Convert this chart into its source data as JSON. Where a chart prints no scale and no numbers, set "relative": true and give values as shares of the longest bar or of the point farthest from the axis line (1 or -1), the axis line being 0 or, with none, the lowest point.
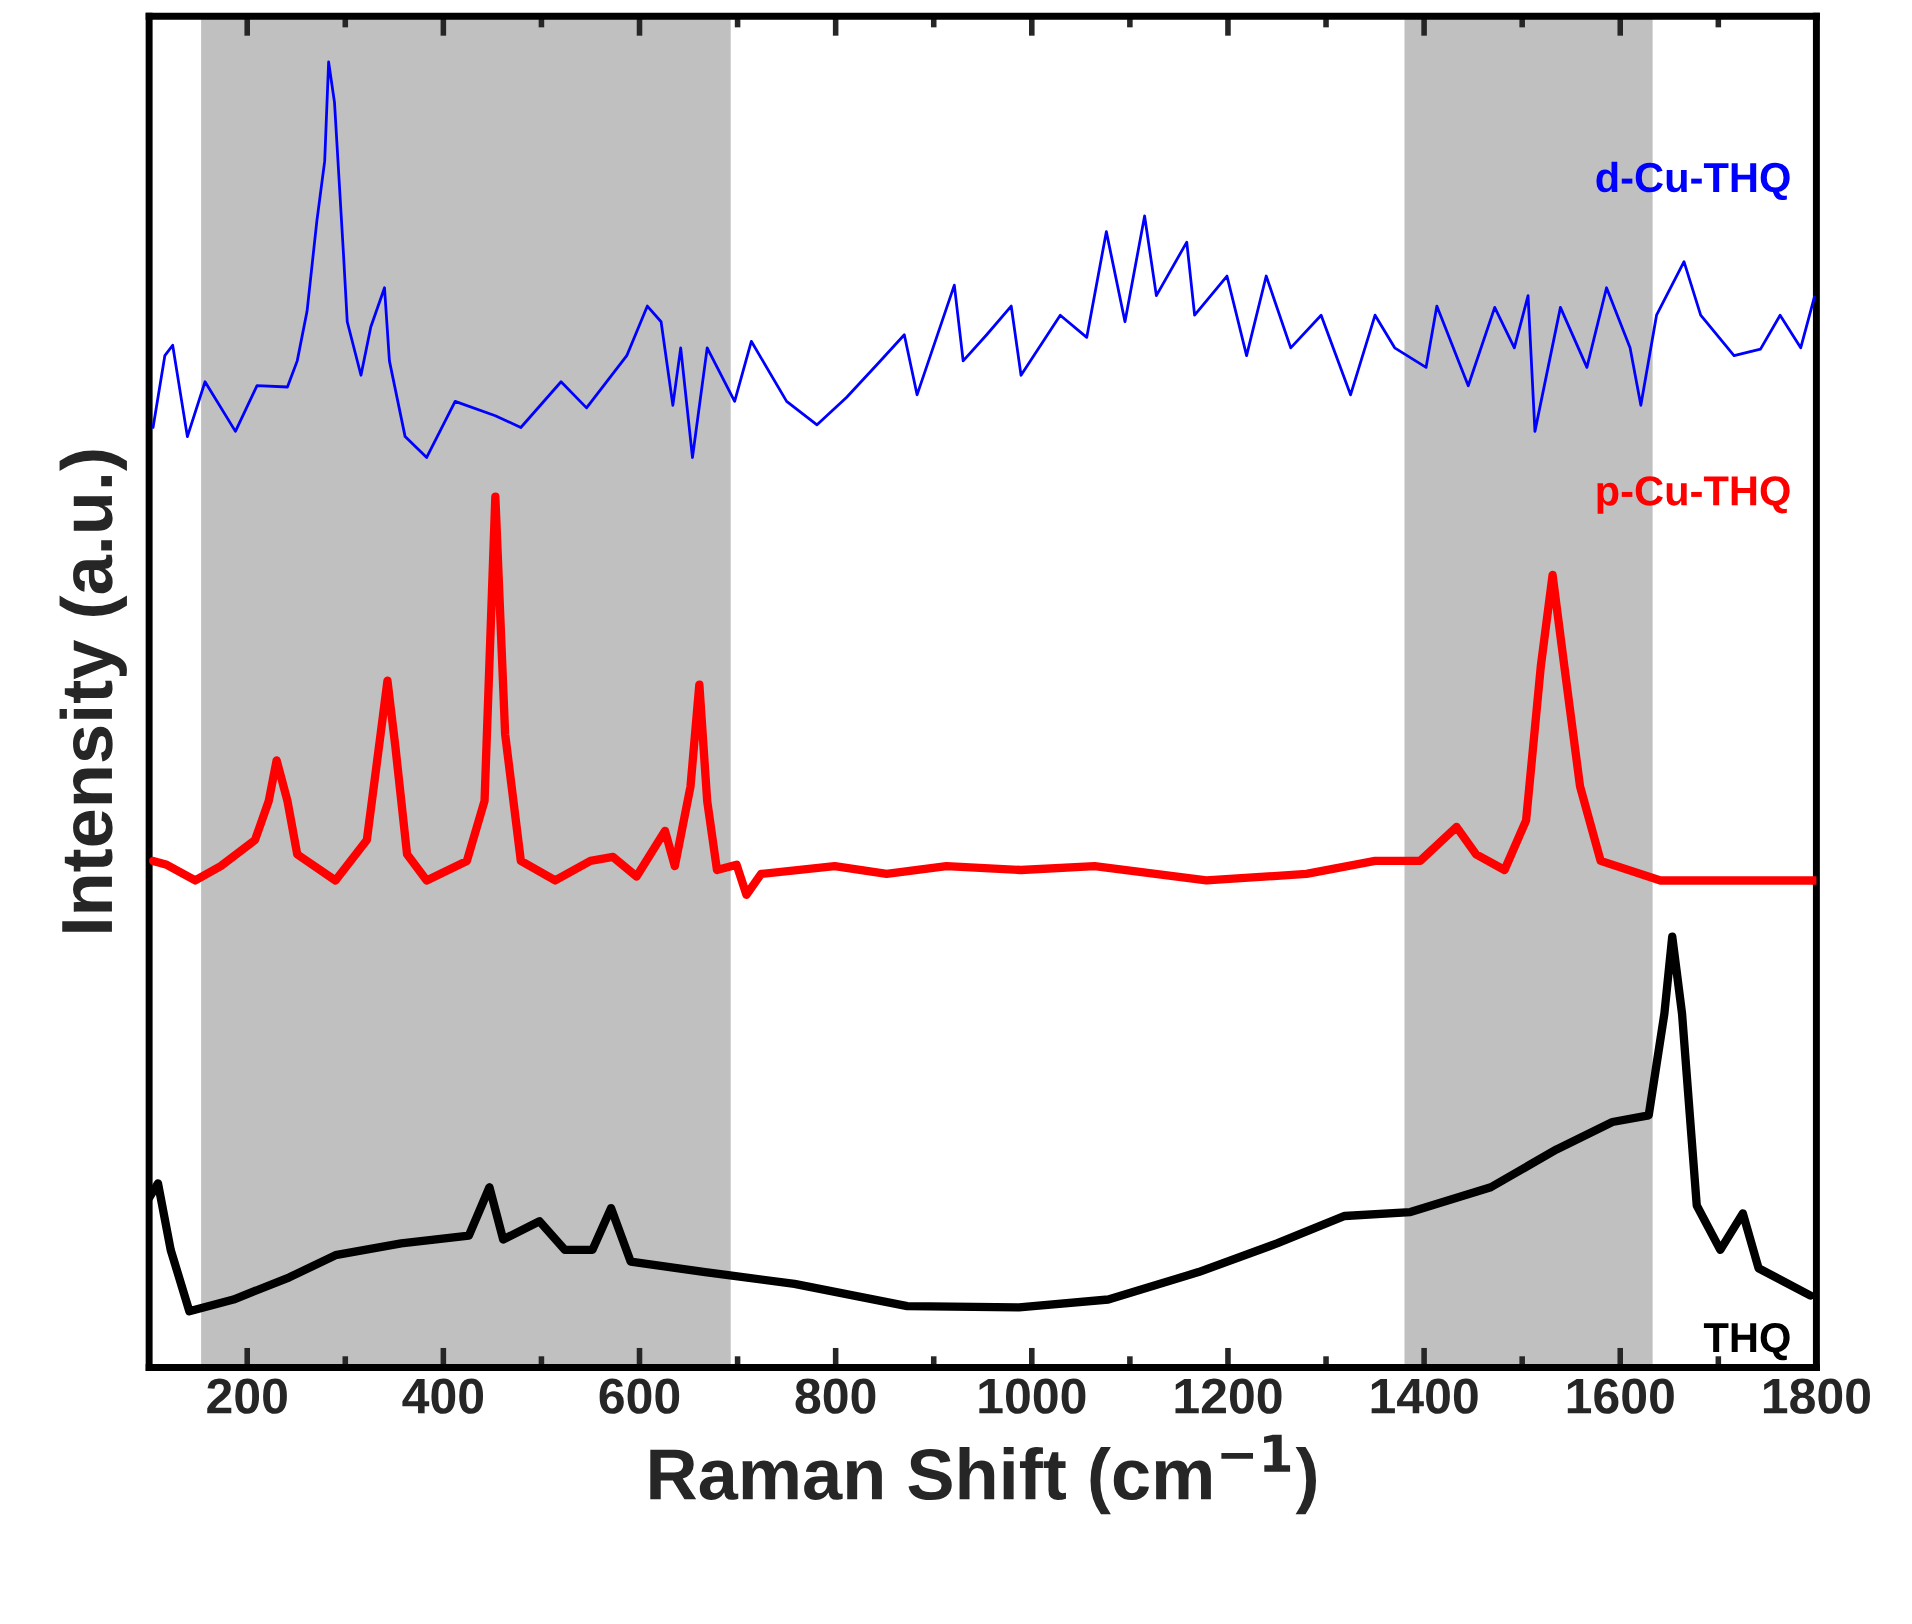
{
  "chart_data": {
    "type": "line",
    "xlabel": "Raman Shift (cm$^{−1}$)",
    "ylabel": "Intensity (a.u.)",
    "relative": true,
    "legend": false,
    "grid": false,
    "xlim": [
      100,
      1800
    ],
    "xticks": [
      {
        "value": 100,
        "label": null
      },
      200,
      {
        "value": 300,
        "label": null
      },
      400,
      {
        "value": 500,
        "label": null
      },
      600,
      {
        "value": 700,
        "label": null
      },
      800,
      {
        "value": 900,
        "label": null
      },
      1000,
      {
        "value": 1100,
        "label": null
      },
      1200,
      {
        "value": 1300,
        "label": null
      },
      1400,
      {
        "value": 1500,
        "label": null
      },
      1600,
      {
        "value": 1700,
        "label": null
      },
      1800
    ],
    "tick_labels": "x",
    "bands": [
      {
        "axis": "x",
        "from": 153,
        "to": 693,
        "label": null,
        "color": "#c0c0c0"
      },
      {
        "axis": "x",
        "from": 1380,
        "to": 1633,
        "label": null,
        "color": "#c0c0c0"
      }
    ],
    "series": [
      {
        "name": "d-Cu-THQ",
        "color": "#0000ff",
        "x": [
          104,
          116,
          124,
          139,
          157,
          188,
          210,
          241,
          251,
          261,
          271,
          279,
          283,
          289,
          298,
          302,
          316,
          326,
          340,
          345,
          361,
          383,
          412,
          453,
          479,
          520,
          546,
          587,
          608,
          622,
          634,
          642,
          654,
          669,
          697,
          714,
          750,
          781,
          811,
          842,
          870,
          883,
          921,
          930,
          954,
          979,
          989,
          1029,
          1056,
          1076,
          1095,
          1115,
          1127,
          1158,
          1166,
          1199,
          1219,
          1239,
          1264,
          1295,
          1325,
          1350,
          1370,
          1402,
          1413,
          1445,
          1472,
          1492,
          1506,
          1513,
          1539,
          1566,
          1586,
          1610,
          1621,
          1637,
          1665,
          1682,
          1716,
          1743,
          1763,
          1784,
          1798
        ],
        "values": [
          0.72,
          0.775,
          0.783,
          0.713,
          0.755,
          0.717,
          0.752,
          0.751,
          0.771,
          0.809,
          0.878,
          0.924,
          1.0,
          0.969,
          0.855,
          0.801,
          0.76,
          0.797,
          0.827,
          0.771,
          0.713,
          0.697,
          0.74,
          0.729,
          0.72,
          0.755,
          0.735,
          0.775,
          0.813,
          0.801,
          0.737,
          0.781,
          0.697,
          0.781,
          0.74,
          0.786,
          0.74,
          0.722,
          0.743,
          0.768,
          0.791,
          0.745,
          0.829,
          0.771,
          0.791,
          0.813,
          0.76,
          0.806,
          0.789,
          0.87,
          0.801,
          0.882,
          0.821,
          0.862,
          0.806,
          0.836,
          0.775,
          0.836,
          0.781,
          0.806,
          0.745,
          0.806,
          0.781,
          0.766,
          0.813,
          0.752,
          0.812,
          0.781,
          0.821,
          0.717,
          0.812,
          0.766,
          0.827,
          0.781,
          0.737,
          0.806,
          0.847,
          0.806,
          0.775,
          0.78,
          0.806,
          0.781,
          0.82
        ]
      },
      {
        "name": "p-Cu-THQ",
        "color": "#ff0000",
        "x": [
          104,
          118,
          147,
          173,
          208,
          222,
          230,
          241,
          251,
          290,
          322,
          336,
          343,
          351,
          363,
          383,
          424,
          442,
          453,
          463,
          479,
          514,
          550,
          573,
          597,
          626,
          636,
          652,
          661,
          669,
          679,
          699,
          709,
          724,
          799,
          852,
          913,
          989,
          1064,
          1178,
          1280,
          1350,
          1396,
          1433,
          1453,
          1482,
          1504,
          1519,
          1531,
          1543,
          1559,
          1580,
          1641,
          1708,
          1800
        ],
        "values": [
          0.388,
          0.385,
          0.373,
          0.384,
          0.404,
          0.434,
          0.465,
          0.434,
          0.393,
          0.373,
          0.404,
          0.485,
          0.526,
          0.476,
          0.393,
          0.373,
          0.388,
          0.434,
          0.667,
          0.485,
          0.388,
          0.373,
          0.388,
          0.391,
          0.376,
          0.411,
          0.384,
          0.445,
          0.523,
          0.434,
          0.381,
          0.385,
          0.362,
          0.378,
          0.384,
          0.378,
          0.384,
          0.381,
          0.384,
          0.373,
          0.378,
          0.388,
          0.388,
          0.414,
          0.393,
          0.381,
          0.419,
          0.537,
          0.607,
          0.537,
          0.445,
          0.388,
          0.373,
          0.373,
          0.373
        ]
      },
      {
        "name": "THQ",
        "color": "#000000",
        "x": [
          100,
          109,
          122,
          141,
          186,
          243,
          290,
          357,
          426,
          447,
          461,
          498,
          524,
          552,
          571,
          591,
          667,
          758,
          873,
          987,
          1078,
          1170,
          1250,
          1319,
          1386,
          1468,
          1535,
          1592,
          1629,
          1645,
          1653,
          1663,
          1678,
          1702,
          1725,
          1741,
          1794
        ],
        "values": [
          0.13,
          0.141,
          0.09,
          0.043,
          0.052,
          0.069,
          0.086,
          0.095,
          0.101,
          0.138,
          0.098,
          0.112,
          0.09,
          0.09,
          0.122,
          0.081,
          0.073,
          0.064,
          0.047,
          0.046,
          0.052,
          0.073,
          0.095,
          0.116,
          0.119,
          0.138,
          0.167,
          0.188,
          0.193,
          0.271,
          0.33,
          0.271,
          0.124,
          0.09,
          0.118,
          0.076,
          0.055
        ]
      }
    ]
  }
}
